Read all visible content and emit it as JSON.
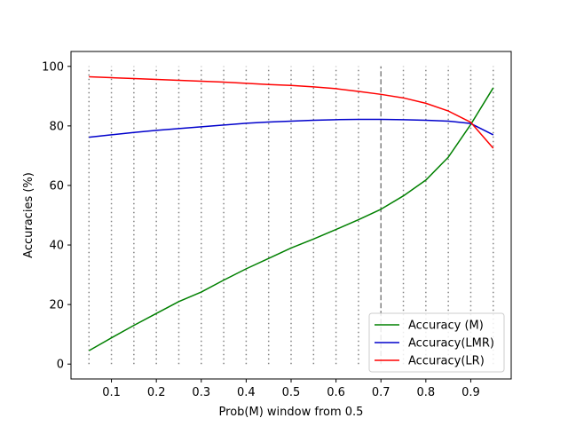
{
  "chart_data": {
    "type": "line",
    "title": "",
    "xlabel": "Prob(M) window from 0.5",
    "ylabel": "Accuracies (%)",
    "xlim": [
      0.01,
      0.99
    ],
    "ylim": [
      -5,
      105
    ],
    "xticks": [
      0.1,
      0.2,
      0.3,
      0.4,
      0.5,
      0.6,
      0.7,
      0.8,
      0.9
    ],
    "yticks": [
      0,
      20,
      40,
      60,
      80,
      100
    ],
    "x": [
      0.05,
      0.1,
      0.15,
      0.2,
      0.25,
      0.3,
      0.35,
      0.4,
      0.45,
      0.5,
      0.55,
      0.6,
      0.65,
      0.7,
      0.75,
      0.8,
      0.85,
      0.9,
      0.95
    ],
    "series": [
      {
        "name": "Accuracy (M)",
        "color": "#008000",
        "values": [
          4.5,
          8.8,
          13.0,
          17.0,
          21.0,
          24.2,
          28.2,
          32.0,
          35.5,
          39.0,
          42.0,
          45.2,
          48.5,
          52.0,
          56.5,
          61.8,
          69.5,
          80.5,
          92.8
        ]
      },
      {
        "name": "Accuracy(LMR)",
        "color": "#0000cc",
        "values": [
          76.2,
          77.0,
          77.8,
          78.5,
          79.1,
          79.7,
          80.3,
          80.9,
          81.3,
          81.6,
          81.9,
          82.1,
          82.2,
          82.2,
          82.1,
          81.9,
          81.6,
          80.8,
          77.0
        ]
      },
      {
        "name": "Accuracy(LR)",
        "color": "#ff0000",
        "values": [
          96.5,
          96.2,
          95.9,
          95.6,
          95.3,
          95.0,
          94.7,
          94.3,
          93.9,
          93.6,
          93.1,
          92.5,
          91.6,
          90.6,
          89.4,
          87.6,
          85.0,
          81.2,
          72.5
        ]
      }
    ],
    "vlines": {
      "dotted_x": [
        0.05,
        0.1,
        0.15,
        0.2,
        0.25,
        0.3,
        0.35,
        0.4,
        0.45,
        0.5,
        0.55,
        0.6,
        0.65,
        0.75,
        0.8,
        0.85,
        0.9,
        0.95
      ],
      "dotted_range": [
        0,
        100
      ],
      "dashed_x": 0.7,
      "dashed_range": [
        0,
        100
      ],
      "color": "#808080"
    },
    "legend_position": "lower-right",
    "grid": false
  }
}
